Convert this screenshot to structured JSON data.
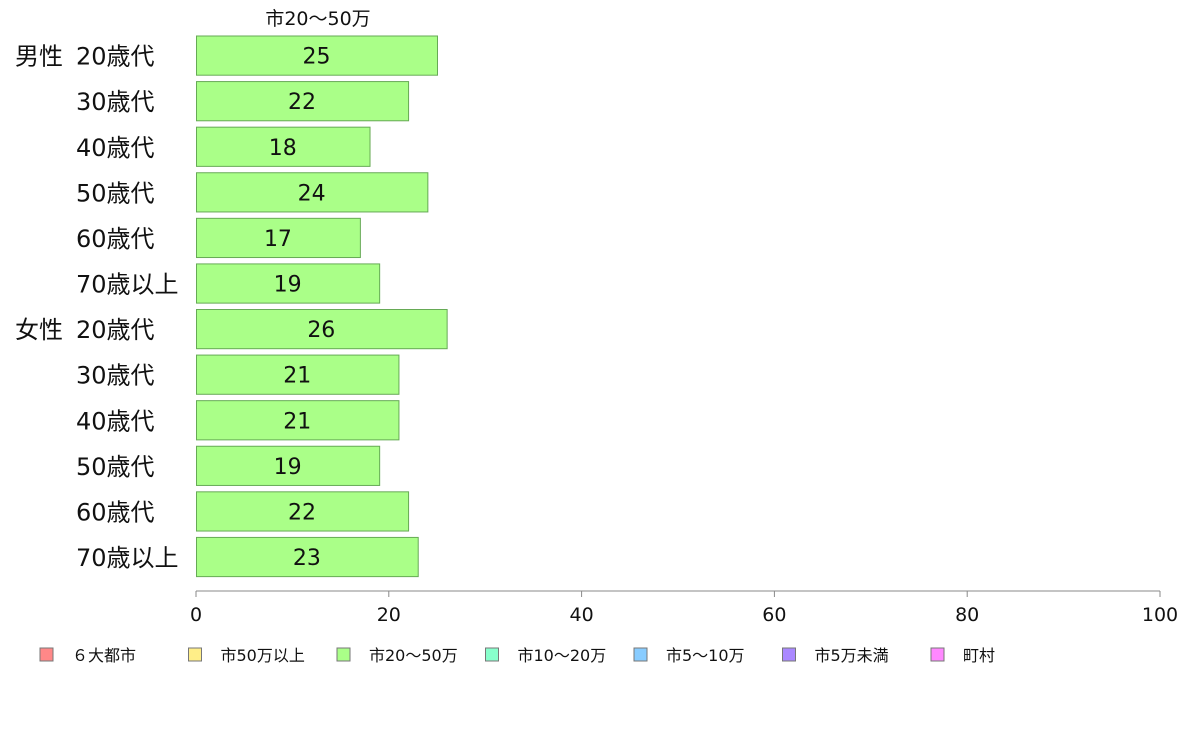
{
  "chart_data": {
    "type": "bar",
    "orientation": "horizontal",
    "series_label": "市20〜50万",
    "rows": [
      {
        "group": "男性",
        "age": "20歳代",
        "value": 25
      },
      {
        "group": "",
        "age": "30歳代",
        "value": 22
      },
      {
        "group": "",
        "age": "40歳代",
        "value": 18
      },
      {
        "group": "",
        "age": "50歳代",
        "value": 24
      },
      {
        "group": "",
        "age": "60歳代",
        "value": 17
      },
      {
        "group": "",
        "age": "70歳以上",
        "value": 19
      },
      {
        "group": "女性",
        "age": "20歳代",
        "value": 26
      },
      {
        "group": "",
        "age": "30歳代",
        "value": 21
      },
      {
        "group": "",
        "age": "40歳代",
        "value": 21
      },
      {
        "group": "",
        "age": "50歳代",
        "value": 19
      },
      {
        "group": "",
        "age": "60歳代",
        "value": 22
      },
      {
        "group": "",
        "age": "70歳以上",
        "value": 23
      }
    ],
    "xlim": [
      0,
      100
    ],
    "x_ticks": [
      0,
      20,
      40,
      60,
      80,
      100
    ],
    "bar_color": "#aaff88",
    "bar_stroke": "#66aa55",
    "grid": false,
    "legend_position": "bottom",
    "legend": [
      {
        "label": "６大都市",
        "color": "#ff8888"
      },
      {
        "label": "市50万以上",
        "color": "#ffee88"
      },
      {
        "label": "市20〜50万",
        "color": "#aaff88"
      },
      {
        "label": "市10〜20万",
        "color": "#88ffcc"
      },
      {
        "label": "市5〜10万",
        "color": "#88ccff"
      },
      {
        "label": "市5万未満",
        "color": "#aa88ff"
      },
      {
        "label": "町村",
        "color": "#ff88ff"
      }
    ]
  }
}
